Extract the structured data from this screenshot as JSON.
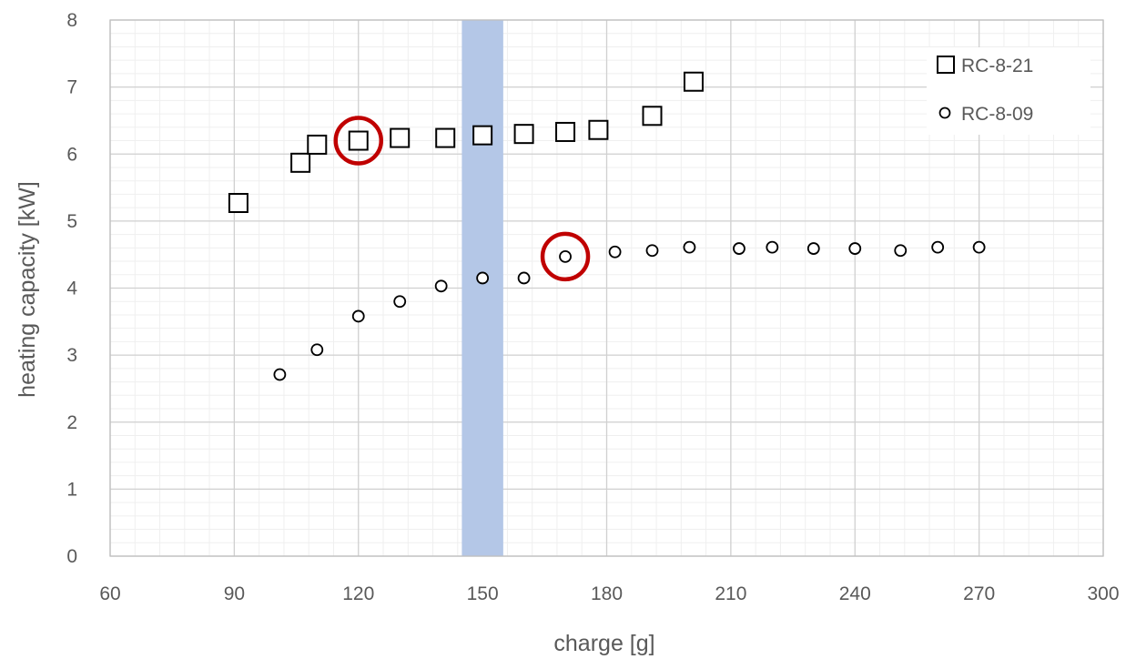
{
  "chart_data": {
    "type": "scatter",
    "title": "",
    "xlabel": "charge [g]",
    "ylabel": "heating capacity [kW]",
    "xlim": [
      60,
      300
    ],
    "ylim": [
      0,
      8
    ],
    "x_major_ticks": [
      60,
      90,
      120,
      150,
      180,
      210,
      240,
      270,
      300
    ],
    "x_tick_labels": [
      "60",
      "90",
      "120",
      "150",
      "180",
      "210",
      "240",
      "270",
      "300"
    ],
    "y_major_ticks": [
      0,
      1,
      2,
      3,
      4,
      5,
      6,
      7,
      8
    ],
    "y_tick_labels": [
      "0",
      "1",
      "2",
      "3",
      "4",
      "5",
      "6",
      "7",
      "8"
    ],
    "x_minor_step": 6,
    "y_minor_step": 0.2,
    "grid": true,
    "legend_position": "top-right",
    "shaded_band": {
      "x_from": 145,
      "x_to": 155,
      "color": "#b4c7e7"
    },
    "series": [
      {
        "name": "RC-8-21",
        "marker": "square",
        "color": "#000000",
        "points": [
          {
            "x": 91,
            "y": 5.27
          },
          {
            "x": 106,
            "y": 5.87
          },
          {
            "x": 110,
            "y": 6.14
          },
          {
            "x": 120,
            "y": 6.2
          },
          {
            "x": 130,
            "y": 6.24
          },
          {
            "x": 141,
            "y": 6.24
          },
          {
            "x": 150,
            "y": 6.28
          },
          {
            "x": 160,
            "y": 6.3
          },
          {
            "x": 170,
            "y": 6.33
          },
          {
            "x": 178,
            "y": 6.36
          },
          {
            "x": 191,
            "y": 6.57
          },
          {
            "x": 201,
            "y": 7.08
          }
        ]
      },
      {
        "name": "RC-8-09",
        "marker": "circle",
        "color": "#000000",
        "points": [
          {
            "x": 101,
            "y": 2.71
          },
          {
            "x": 110,
            "y": 3.08
          },
          {
            "x": 120,
            "y": 3.58
          },
          {
            "x": 130,
            "y": 3.8
          },
          {
            "x": 140,
            "y": 4.03
          },
          {
            "x": 150,
            "y": 4.15
          },
          {
            "x": 160,
            "y": 4.15
          },
          {
            "x": 170,
            "y": 4.47
          },
          {
            "x": 182,
            "y": 4.54
          },
          {
            "x": 191,
            "y": 4.56
          },
          {
            "x": 200,
            "y": 4.61
          },
          {
            "x": 212,
            "y": 4.59
          },
          {
            "x": 220,
            "y": 4.61
          },
          {
            "x": 230,
            "y": 4.59
          },
          {
            "x": 240,
            "y": 4.59
          },
          {
            "x": 251,
            "y": 4.56
          },
          {
            "x": 260,
            "y": 4.61
          },
          {
            "x": 270,
            "y": 4.61
          }
        ]
      }
    ],
    "highlights": [
      {
        "series": "RC-8-21",
        "x": 120,
        "y": 6.2,
        "color": "#c00000"
      },
      {
        "series": "RC-8-09",
        "x": 170,
        "y": 4.47,
        "color": "#c00000"
      }
    ]
  }
}
